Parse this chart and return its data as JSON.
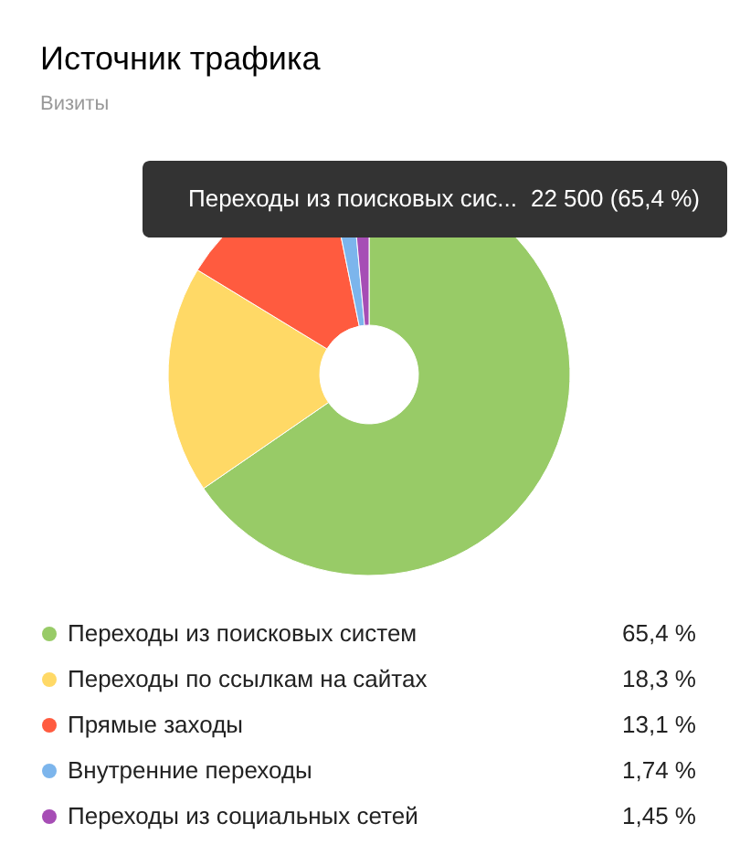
{
  "chart_data": {
    "type": "donut",
    "title": "Источник трафика",
    "subtitle": "Визиты",
    "categories": [
      "Переходы из поисковых систем",
      "Переходы по ссылкам на сайтах",
      "Прямые заходы",
      "Внутренние переходы",
      "Переходы из социальных сетей"
    ],
    "values": [
      65.4,
      18.3,
      13.1,
      1.74,
      1.45
    ],
    "colors": [
      "#98cb67",
      "#ffd966",
      "#ff5b3f",
      "#7cb5ec",
      "#a64db5"
    ],
    "value_labels": [
      "65,4 %",
      "18,3 %",
      "13,1 %",
      "1,74 %",
      "1,45 %"
    ],
    "legend": "bottom",
    "annotations": [
      "Переходы из поисковых сис...",
      "22 500 (65,4 %)"
    ]
  }
}
